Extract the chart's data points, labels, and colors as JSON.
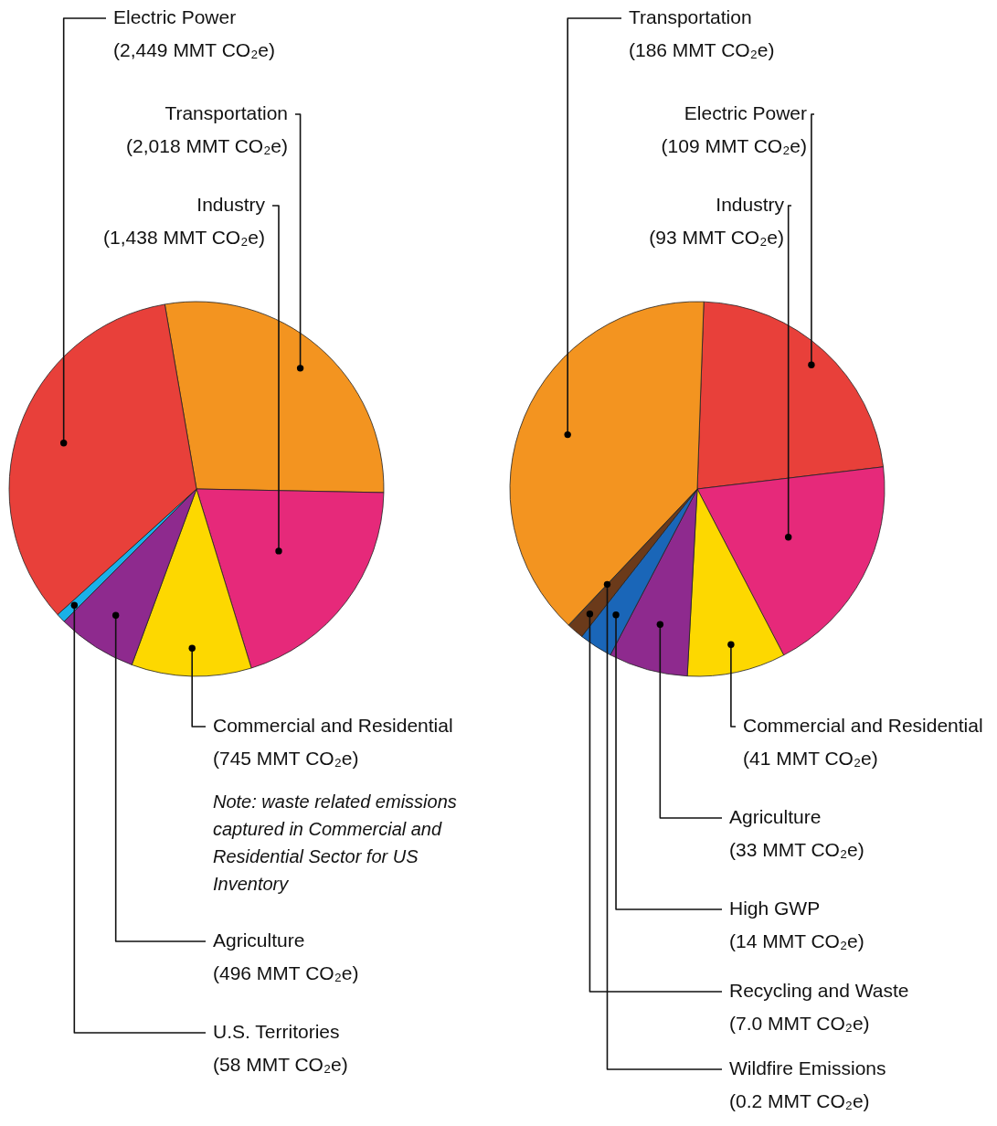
{
  "chart_data": [
    {
      "type": "pie",
      "categories": [
        "Transportation",
        "Industry",
        "Commercial and Residential",
        "Agriculture",
        "U.S. Territories",
        "Electric Power"
      ],
      "values": [
        2018,
        1438,
        745,
        496,
        58,
        2449
      ],
      "colors": [
        "#f39420",
        "#e6297a",
        "#fdd800",
        "#8e2a8e",
        "#1ab0e8",
        "#e8403a"
      ],
      "value_labels": [
        "(2,018 MMT CO₂e)",
        "(1,438 MMT CO₂e)",
        "(745 MMT CO₂e)",
        "(496 MMT CO₂e)",
        "(58 MMT CO₂e)",
        "(2,449 MMT CO₂e)"
      ],
      "annotations": [
        "Note: waste related emissions captured in Commercial and Residential Sector for US Inventory"
      ]
    },
    {
      "type": "pie",
      "categories": [
        "Electric Power",
        "Industry",
        "Commercial and Residential",
        "Agriculture",
        "High GWP",
        "Recycling and Waste",
        "Wildfire Emissions",
        "Transportation"
      ],
      "values": [
        109,
        93,
        41,
        33,
        14,
        7.0,
        0.2,
        186
      ],
      "colors": [
        "#e8403a",
        "#e6297a",
        "#fdd800",
        "#8e2a8e",
        "#1a66b8",
        "#6b3a1a",
        "#efe4d2",
        "#f39420"
      ],
      "value_labels": [
        "(109 MMT CO₂e)",
        "(93 MMT CO₂e)",
        "(41 MMT CO₂e)",
        "(33 MMT CO₂e)",
        "(14 MMT CO₂e)",
        "(7.0 MMT CO₂e)",
        "(0.2 MMT CO₂e)",
        "(186 MMT CO₂e)"
      ]
    }
  ]
}
